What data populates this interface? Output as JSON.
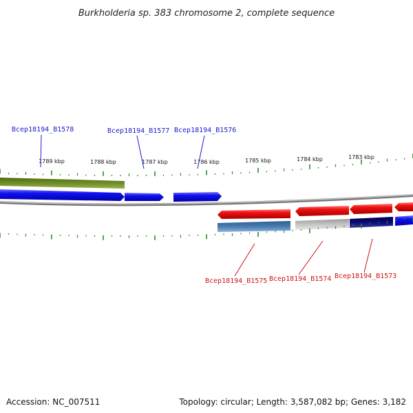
{
  "title": "Burkholderia sp. 383 chromosome 2, complete sequence",
  "footer": {
    "accession": "Accession: NC_007511",
    "topology": "Topology: circular; Length: 3,587,082 bp; Genes: 3,182"
  },
  "scale": {
    "labels": [
      "1789 kbp",
      "1788 kbp",
      "1787 kbp",
      "1786 kbp",
      "1785 kbp",
      "1784 kbp",
      "1783 kbp"
    ]
  },
  "genes": {
    "forward": [
      "Bcep18194_B1578",
      "Bcep18194_B1577",
      "Bcep18194_B1576"
    ],
    "reverse": [
      "Bcep18194_B1575",
      "Bcep18194_B1574",
      "Bcep18194_B1573"
    ]
  },
  "colors": {
    "forward_gene": "#1010e8",
    "reverse_gene": "#e81010",
    "forward_label": "#1a1ac8",
    "reverse_label": "#d01010",
    "olive_track": "#6b8a22",
    "steelblue_track": "#4a78aa",
    "gray_track": "#bdbdbd",
    "navy_track": "#0a0a70",
    "backbone": "#8a8a8a",
    "ticks": "#2a8a2a"
  }
}
